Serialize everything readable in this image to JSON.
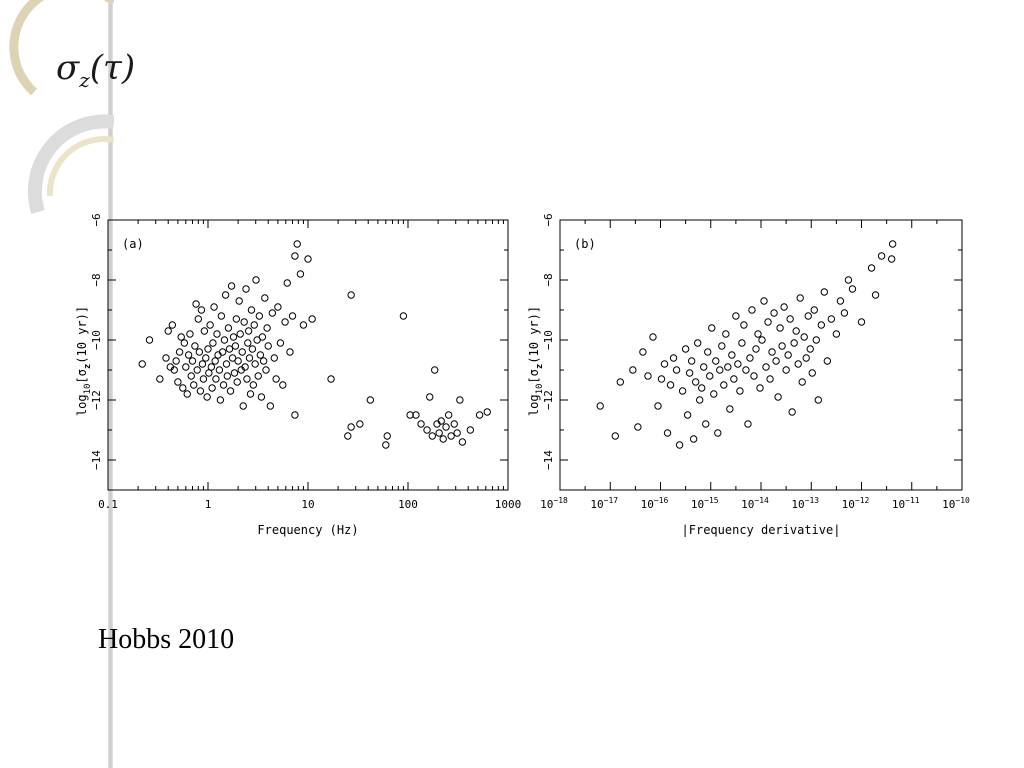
{
  "slide": {
    "title_base": "σ",
    "title_sub": "z",
    "title_arg": "(τ)",
    "citation": "Hobbs 2010"
  },
  "chart_data": [
    {
      "type": "scatter",
      "panel_label": "(a)",
      "xlabel": "Frequency (Hz)",
      "ylabel_parts": {
        "pre": "log",
        "sub1": "10",
        "mid": "[σ",
        "sub2": "z",
        "post": "(10 yr)]"
      },
      "x_scale": "log",
      "xlim": [
        0.1,
        1000
      ],
      "ylim": [
        -15,
        -6
      ],
      "x_ticks": [
        0.1,
        1,
        10,
        100,
        1000
      ],
      "x_tick_labels": [
        "0.1",
        "1",
        "10",
        "100",
        "1000"
      ],
      "y_ticks": [
        -6,
        -8,
        -10,
        -12,
        -14
      ],
      "y_tick_labels": [
        "−6",
        "−8",
        "−10",
        "−12",
        "−14"
      ],
      "marker": "open-circle",
      "points": [
        [
          0.22,
          -10.8
        ],
        [
          0.26,
          -10.0
        ],
        [
          0.33,
          -11.3
        ],
        [
          0.38,
          -10.6
        ],
        [
          0.4,
          -9.7
        ],
        [
          0.42,
          -10.9
        ],
        [
          0.44,
          -9.5
        ],
        [
          0.46,
          -11.0
        ],
        [
          0.48,
          -10.7
        ],
        [
          0.5,
          -11.4
        ],
        [
          0.52,
          -10.4
        ],
        [
          0.54,
          -9.9
        ],
        [
          0.56,
          -11.6
        ],
        [
          0.58,
          -10.1
        ],
        [
          0.6,
          -10.9
        ],
        [
          0.62,
          -11.8
        ],
        [
          0.64,
          -10.5
        ],
        [
          0.66,
          -9.8
        ],
        [
          0.68,
          -11.2
        ],
        [
          0.7,
          -10.7
        ],
        [
          0.72,
          -11.5
        ],
        [
          0.74,
          -10.2
        ],
        [
          0.76,
          -8.8
        ],
        [
          0.78,
          -11.0
        ],
        [
          0.8,
          -9.3
        ],
        [
          0.82,
          -10.4
        ],
        [
          0.84,
          -11.7
        ],
        [
          0.86,
          -9.0
        ],
        [
          0.88,
          -10.8
        ],
        [
          0.9,
          -11.3
        ],
        [
          0.92,
          -9.7
        ],
        [
          0.95,
          -10.6
        ],
        [
          0.98,
          -11.9
        ],
        [
          1.0,
          -10.3
        ],
        [
          1.02,
          -11.1
        ],
        [
          1.05,
          -9.5
        ],
        [
          1.08,
          -10.9
        ],
        [
          1.1,
          -11.6
        ],
        [
          1.12,
          -10.1
        ],
        [
          1.15,
          -8.9
        ],
        [
          1.18,
          -10.7
        ],
        [
          1.2,
          -11.3
        ],
        [
          1.23,
          -9.8
        ],
        [
          1.26,
          -10.5
        ],
        [
          1.3,
          -11.0
        ],
        [
          1.33,
          -12.0
        ],
        [
          1.36,
          -9.2
        ],
        [
          1.4,
          -10.4
        ],
        [
          1.43,
          -11.5
        ],
        [
          1.46,
          -10.0
        ],
        [
          1.5,
          -8.5
        ],
        [
          1.53,
          -10.8
        ],
        [
          1.56,
          -11.2
        ],
        [
          1.6,
          -9.6
        ],
        [
          1.64,
          -10.3
        ],
        [
          1.68,
          -11.7
        ],
        [
          1.72,
          -8.2
        ],
        [
          1.76,
          -10.6
        ],
        [
          1.8,
          -9.9
        ],
        [
          1.84,
          -11.1
        ],
        [
          1.88,
          -10.2
        ],
        [
          1.92,
          -9.3
        ],
        [
          1.96,
          -11.4
        ],
        [
          2.0,
          -10.7
        ],
        [
          2.05,
          -8.7
        ],
        [
          2.1,
          -9.8
        ],
        [
          2.15,
          -11.0
        ],
        [
          2.2,
          -10.4
        ],
        [
          2.25,
          -12.2
        ],
        [
          2.3,
          -9.4
        ],
        [
          2.35,
          -10.9
        ],
        [
          2.4,
          -8.3
        ],
        [
          2.45,
          -11.3
        ],
        [
          2.5,
          -10.1
        ],
        [
          2.55,
          -9.7
        ],
        [
          2.6,
          -10.6
        ],
        [
          2.66,
          -11.8
        ],
        [
          2.72,
          -9.0
        ],
        [
          2.78,
          -10.3
        ],
        [
          2.84,
          -11.5
        ],
        [
          2.9,
          -9.5
        ],
        [
          2.96,
          -10.8
        ],
        [
          3.02,
          -8.0
        ],
        [
          3.1,
          -10.0
        ],
        [
          3.18,
          -11.2
        ],
        [
          3.26,
          -9.2
        ],
        [
          3.34,
          -10.5
        ],
        [
          3.42,
          -11.9
        ],
        [
          3.5,
          -9.9
        ],
        [
          3.6,
          -10.7
        ],
        [
          3.7,
          -8.6
        ],
        [
          3.8,
          -11.0
        ],
        [
          3.9,
          -9.6
        ],
        [
          4.0,
          -10.2
        ],
        [
          4.2,
          -12.2
        ],
        [
          4.4,
          -9.1
        ],
        [
          4.6,
          -10.6
        ],
        [
          4.8,
          -11.3
        ],
        [
          5.0,
          -8.9
        ],
        [
          5.3,
          -10.1
        ],
        [
          5.6,
          -11.5
        ],
        [
          5.9,
          -9.4
        ],
        [
          6.2,
          -8.1
        ],
        [
          6.6,
          -10.4
        ],
        [
          7.0,
          -9.2
        ],
        [
          7.4,
          -12.5
        ],
        [
          7.4,
          -7.2
        ],
        [
          7.8,
          -6.8
        ],
        [
          8.4,
          -7.8
        ],
        [
          9.0,
          -9.5
        ],
        [
          10.0,
          -7.3
        ],
        [
          11.0,
          -9.3
        ],
        [
          17.0,
          -11.3
        ],
        [
          25.0,
          -13.2
        ],
        [
          27.0,
          -12.9
        ],
        [
          27.0,
          -8.5
        ],
        [
          33.0,
          -12.8
        ],
        [
          42.0,
          -12.0
        ],
        [
          60.0,
          -13.5
        ],
        [
          62.0,
          -13.2
        ],
        [
          90.0,
          -9.2
        ],
        [
          105.0,
          -12.5
        ],
        [
          120.0,
          -12.5
        ],
        [
          135.0,
          -12.8
        ],
        [
          155.0,
          -13.0
        ],
        [
          165.0,
          -11.9
        ],
        [
          175.0,
          -13.2
        ],
        [
          185.0,
          -11.0
        ],
        [
          195.0,
          -12.8
        ],
        [
          205.0,
          -13.1
        ],
        [
          215.0,
          -12.7
        ],
        [
          225.0,
          -13.3
        ],
        [
          240.0,
          -12.9
        ],
        [
          255.0,
          -12.5
        ],
        [
          270.0,
          -13.2
        ],
        [
          290.0,
          -12.8
        ],
        [
          310.0,
          -13.1
        ],
        [
          330.0,
          -12.0
        ],
        [
          350.0,
          -13.4
        ],
        [
          420.0,
          -13.0
        ],
        [
          520.0,
          -12.5
        ],
        [
          620.0,
          -12.4
        ]
      ]
    },
    {
      "type": "scatter",
      "panel_label": "(b)",
      "xlabel": "|Frequency derivative|",
      "ylabel_parts": {
        "pre": "log",
        "sub1": "10",
        "mid": "[σ",
        "sub2": "z",
        "post": "(10 yr)]"
      },
      "x_scale": "log",
      "xlim": [
        1e-18,
        1e-10
      ],
      "ylim": [
        -15,
        -6
      ],
      "x_ticks": [
        -18,
        -17,
        -16,
        -15,
        -14,
        -13,
        -12,
        -11,
        -10
      ],
      "x_tick_labels": [
        "10−18",
        "10−17",
        "10−16",
        "10−15",
        "10−14",
        "10−13",
        "10−12",
        "10−11",
        "10−10"
      ],
      "x_tick_bases": [
        "10",
        "10",
        "10",
        "10",
        "10",
        "10",
        "10",
        "10",
        "10"
      ],
      "x_tick_exps": [
        "−18",
        "−17",
        "−16",
        "−15",
        "−14",
        "−13",
        "−12",
        "−11",
        "−10"
      ],
      "y_ticks": [
        -6,
        -8,
        -10,
        -12,
        -14
      ],
      "y_tick_labels": [
        "−6",
        "−8",
        "−10",
        "−12",
        "−14"
      ],
      "marker": "open-circle",
      "points_log_x": [
        [
          -17.2,
          -12.2
        ],
        [
          -16.9,
          -13.2
        ],
        [
          -16.8,
          -11.4
        ],
        [
          -16.55,
          -11.0
        ],
        [
          -16.45,
          -12.9
        ],
        [
          -16.35,
          -10.4
        ],
        [
          -16.25,
          -11.2
        ],
        [
          -16.15,
          -9.9
        ],
        [
          -16.05,
          -12.2
        ],
        [
          -15.98,
          -11.3
        ],
        [
          -15.92,
          -10.8
        ],
        [
          -15.86,
          -13.1
        ],
        [
          -15.8,
          -11.5
        ],
        [
          -15.74,
          -10.6
        ],
        [
          -15.68,
          -11.0
        ],
        [
          -15.62,
          -13.5
        ],
        [
          -15.56,
          -11.7
        ],
        [
          -15.5,
          -10.3
        ],
        [
          -15.46,
          -12.5
        ],
        [
          -15.42,
          -11.1
        ],
        [
          -15.38,
          -10.7
        ],
        [
          -15.34,
          -13.3
        ],
        [
          -15.3,
          -11.4
        ],
        [
          -15.26,
          -10.1
        ],
        [
          -15.22,
          -12.0
        ],
        [
          -15.18,
          -11.6
        ],
        [
          -15.14,
          -10.9
        ],
        [
          -15.1,
          -12.8
        ],
        [
          -15.06,
          -10.4
        ],
        [
          -15.02,
          -11.2
        ],
        [
          -14.98,
          -9.6
        ],
        [
          -14.94,
          -11.8
        ],
        [
          -14.9,
          -10.7
        ],
        [
          -14.86,
          -13.1
        ],
        [
          -14.82,
          -11.0
        ],
        [
          -14.78,
          -10.2
        ],
        [
          -14.74,
          -11.5
        ],
        [
          -14.7,
          -9.8
        ],
        [
          -14.66,
          -10.9
        ],
        [
          -14.62,
          -12.3
        ],
        [
          -14.58,
          -10.5
        ],
        [
          -14.54,
          -11.3
        ],
        [
          -14.5,
          -9.2
        ],
        [
          -14.46,
          -10.8
        ],
        [
          -14.42,
          -11.7
        ],
        [
          -14.38,
          -10.1
        ],
        [
          -14.34,
          -9.5
        ],
        [
          -14.3,
          -11.0
        ],
        [
          -14.26,
          -12.8
        ],
        [
          -14.22,
          -10.6
        ],
        [
          -14.18,
          -9.0
        ],
        [
          -14.14,
          -11.2
        ],
        [
          -14.1,
          -10.3
        ],
        [
          -14.06,
          -9.8
        ],
        [
          -14.02,
          -11.6
        ],
        [
          -13.98,
          -10.0
        ],
        [
          -13.94,
          -8.7
        ],
        [
          -13.9,
          -10.9
        ],
        [
          -13.86,
          -9.4
        ],
        [
          -13.82,
          -11.3
        ],
        [
          -13.78,
          -10.4
        ],
        [
          -13.74,
          -9.1
        ],
        [
          -13.7,
          -10.7
        ],
        [
          -13.66,
          -11.9
        ],
        [
          -13.62,
          -9.6
        ],
        [
          -13.58,
          -10.2
        ],
        [
          -13.54,
          -8.9
        ],
        [
          -13.5,
          -11.0
        ],
        [
          -13.46,
          -10.5
        ],
        [
          -13.42,
          -9.3
        ],
        [
          -13.38,
          -12.4
        ],
        [
          -13.34,
          -10.1
        ],
        [
          -13.3,
          -9.7
        ],
        [
          -13.26,
          -10.8
        ],
        [
          -13.22,
          -8.6
        ],
        [
          -13.18,
          -11.4
        ],
        [
          -13.14,
          -9.9
        ],
        [
          -13.1,
          -10.6
        ],
        [
          -13.06,
          -9.2
        ],
        [
          -13.02,
          -10.3
        ],
        [
          -12.98,
          -11.1
        ],
        [
          -12.94,
          -9.0
        ],
        [
          -12.9,
          -10.0
        ],
        [
          -12.86,
          -12.0
        ],
        [
          -12.8,
          -9.5
        ],
        [
          -12.74,
          -8.4
        ],
        [
          -12.68,
          -10.7
        ],
        [
          -12.6,
          -9.3
        ],
        [
          -12.5,
          -9.8
        ],
        [
          -12.42,
          -8.7
        ],
        [
          -12.34,
          -9.1
        ],
        [
          -12.26,
          -8.0
        ],
        [
          -12.18,
          -8.3
        ],
        [
          -12.0,
          -9.4
        ],
        [
          -11.8,
          -7.6
        ],
        [
          -11.72,
          -8.5
        ],
        [
          -11.6,
          -7.2
        ],
        [
          -11.4,
          -7.3
        ],
        [
          -11.38,
          -6.8
        ]
      ]
    }
  ]
}
